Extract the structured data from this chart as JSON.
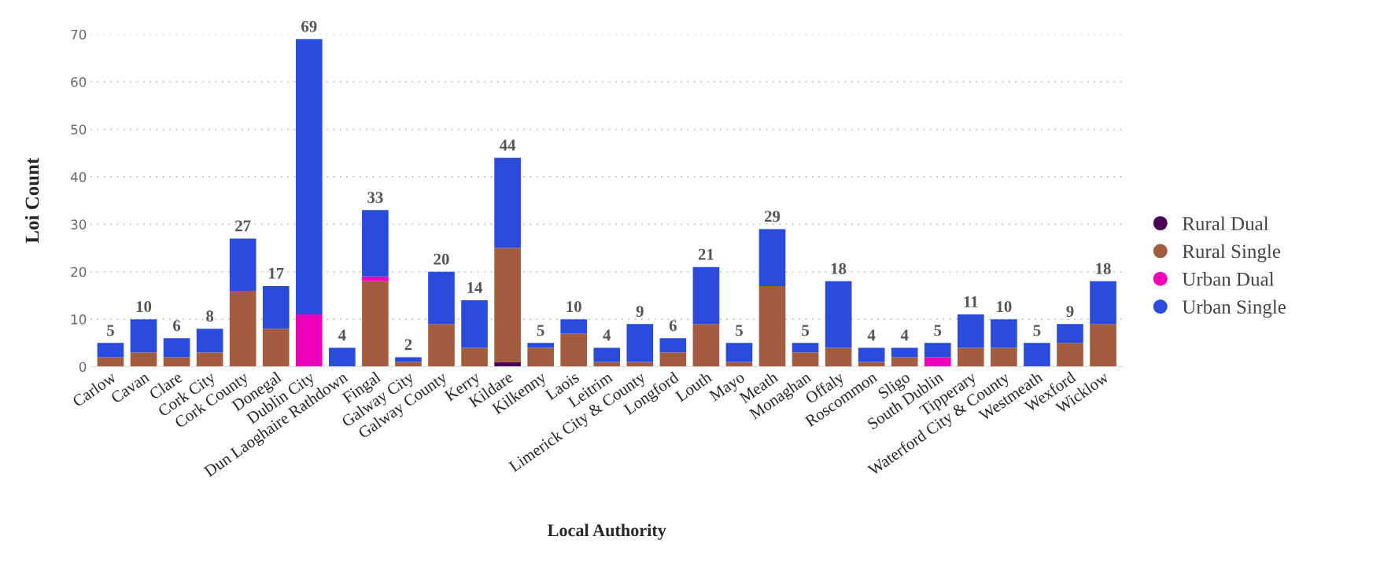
{
  "chart_data": {
    "type": "bar",
    "stacked": true,
    "xlabel": "Local Authority",
    "ylabel": "Loi Count",
    "categories": [
      "Carlow",
      "Cavan",
      "Clare",
      "Cork City",
      "Cork County",
      "Donegal",
      "Dublin City",
      "Dun Laoghaire Rathdown",
      "Fingal",
      "Galway City",
      "Galway County",
      "Kerry",
      "Kildare",
      "Kilkenny",
      "Laois",
      "Leitrim",
      "Limerick City & County",
      "Longford",
      "Louth",
      "Mayo",
      "Meath",
      "Monaghan",
      "Offaly",
      "Roscommon",
      "Sligo",
      "South Dublin",
      "Tipperary",
      "Waterford City & County",
      "Westmeath",
      "Wexford",
      "Wicklow"
    ],
    "series": [
      {
        "name": "Rural Dual",
        "color": "#4b0055",
        "values": [
          0,
          0,
          0,
          0,
          0,
          0,
          0,
          0,
          0,
          0,
          0,
          0,
          1,
          0,
          0,
          0,
          0,
          0,
          0,
          0,
          0,
          0,
          0,
          0,
          0,
          0,
          0,
          0,
          0,
          0,
          0
        ]
      },
      {
        "name": "Rural Single",
        "color": "#a35c3f",
        "values": [
          2,
          3,
          2,
          3,
          16,
          8,
          0,
          0,
          18,
          1,
          9,
          4,
          24,
          4,
          7,
          1,
          1,
          3,
          9,
          1,
          17,
          3,
          4,
          1,
          2,
          0,
          4,
          4,
          0,
          5,
          9
        ]
      },
      {
        "name": "Urban Dual",
        "color": "#f000b8",
        "values": [
          0,
          0,
          0,
          0,
          0,
          0,
          11,
          0,
          1,
          0,
          0,
          0,
          0,
          0,
          0,
          0,
          0,
          0,
          0,
          0,
          0,
          0,
          0,
          0,
          0,
          2,
          0,
          0,
          0,
          0,
          0
        ]
      },
      {
        "name": "Urban Single",
        "color": "#2a4bdc",
        "values": [
          3,
          7,
          4,
          5,
          11,
          9,
          58,
          4,
          14,
          1,
          11,
          10,
          19,
          1,
          3,
          3,
          8,
          3,
          12,
          4,
          12,
          2,
          14,
          3,
          2,
          3,
          7,
          6,
          5,
          4,
          9
        ]
      }
    ],
    "totals": [
      "5",
      "10",
      "6",
      "8",
      "27",
      "17",
      "69",
      "4",
      "33",
      "2",
      "20",
      "14",
      "44",
      "5",
      "10",
      "4",
      "9",
      "6",
      "21",
      "5",
      "29",
      "5",
      "18",
      "4",
      "4",
      "5",
      "11",
      "10",
      "5",
      "9",
      "18"
    ],
    "ylim": [
      0,
      70
    ],
    "yticks": [
      0,
      10,
      20,
      30,
      40,
      50,
      60,
      70
    ],
    "grid": "y",
    "legend": "right",
    "marker": "circle"
  }
}
